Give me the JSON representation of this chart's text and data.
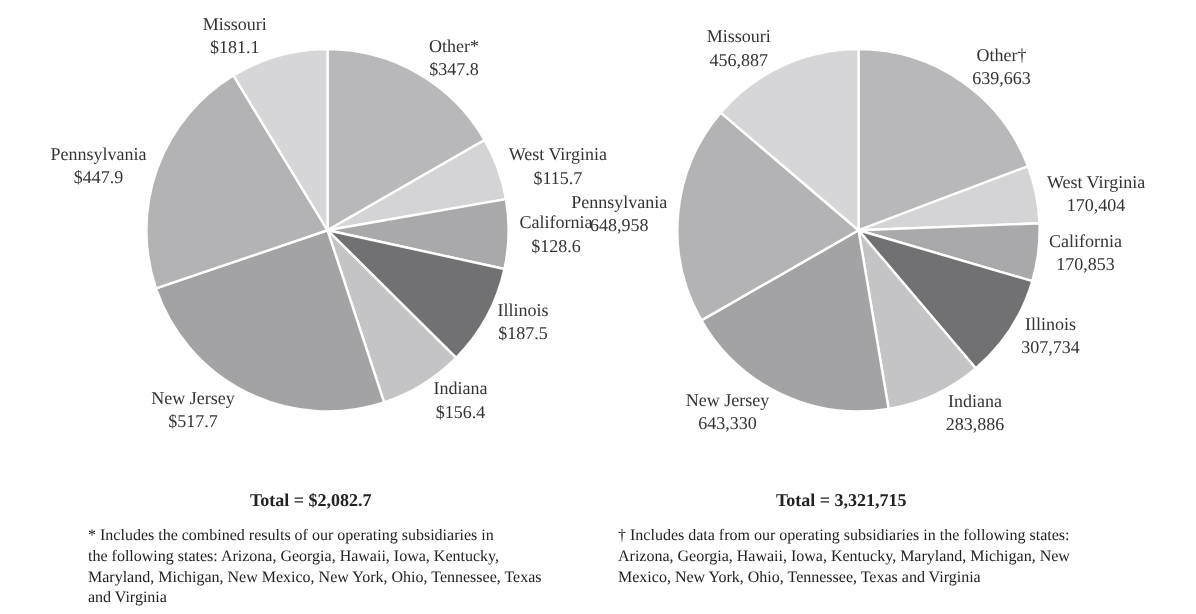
{
  "chart_data": [
    {
      "type": "pie",
      "categories": [
        "Other*",
        "West Virginia",
        "California",
        "Illinois",
        "Indiana",
        "New Jersey",
        "Pennsylvania",
        "Missouri"
      ],
      "values": [
        347.8,
        115.7,
        128.6,
        187.5,
        156.4,
        517.7,
        447.9,
        181.1
      ],
      "value_labels": [
        "$347.8",
        "$115.7",
        "$128.6",
        "$187.5",
        "$156.4",
        "$517.7",
        "$447.9",
        "$181.1"
      ],
      "colors": [
        "#b8b8ba",
        "#d4d4d6",
        "#a9a9ab",
        "#717173",
        "#c4c4c6",
        "#a3a3a5",
        "#b3b3b5",
        "#d6d6d8"
      ],
      "annotations": [
        "Total = $2,082.7",
        "* Includes the combined results of our operating subsidiaries in the following states: Arizona, Georgia, Hawaii, Iowa, Kentucky, Maryland, Michigan, New Mexico, New York, Ohio, Tennessee, Texas and Virginia"
      ]
    },
    {
      "type": "pie",
      "categories": [
        "Other†",
        "West Virginia",
        "California",
        "Illinois",
        "Indiana",
        "New Jersey",
        "Pennsylvania",
        "Missouri"
      ],
      "values": [
        639663,
        170404,
        170853,
        307734,
        283886,
        643330,
        648958,
        456887
      ],
      "value_labels": [
        "639,663",
        "170,404",
        "170,853",
        "307,734",
        "283,886",
        "643,330",
        "648,958",
        "456,887"
      ],
      "colors": [
        "#b8b8ba",
        "#d4d4d6",
        "#a9a9ab",
        "#717173",
        "#c4c4c6",
        "#a3a3a5",
        "#b3b3b5",
        "#d6d6d8"
      ],
      "annotations": [
        "Total = 3,321,715",
        "† Includes data from our operating subsidiaries in the following states: Arizona, Georgia, Hawaii, Iowa, Kentucky, Maryland, Michigan, New Mexico, New York, Ohio, Tennessee, Texas and Virginia"
      ]
    }
  ]
}
